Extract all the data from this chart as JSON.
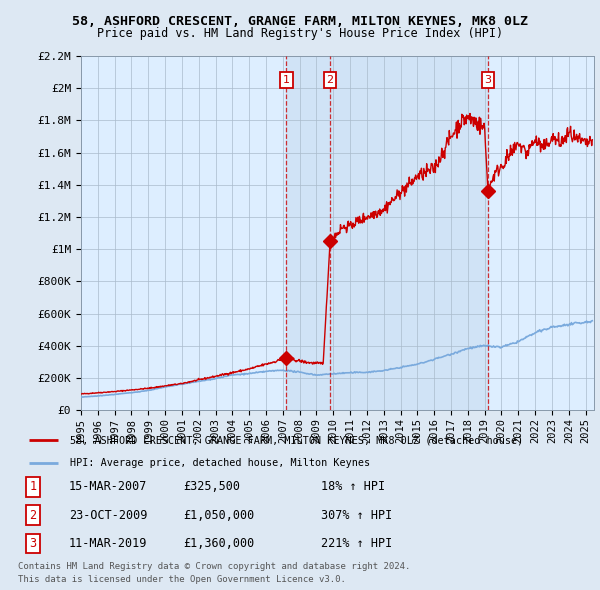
{
  "title1": "58, ASHFORD CRESCENT, GRANGE FARM, MILTON KEYNES, MK8 0LZ",
  "title2": "Price paid vs. HM Land Registry's House Price Index (HPI)",
  "legend_red": "58, ASHFORD CRESCENT, GRANGE FARM, MILTON KEYNES, MK8 0LZ (detached house)",
  "legend_blue": "HPI: Average price, detached house, Milton Keynes",
  "footnote1": "Contains HM Land Registry data © Crown copyright and database right 2024.",
  "footnote2": "This data is licensed under the Open Government Licence v3.0.",
  "sale_events": [
    {
      "num": 1,
      "date": "15-MAR-2007",
      "price": 325500,
      "hpi_pct": "18%"
    },
    {
      "num": 2,
      "date": "23-OCT-2009",
      "price": 1050000,
      "hpi_pct": "307%"
    },
    {
      "num": 3,
      "date": "11-MAR-2019",
      "price": 1360000,
      "hpi_pct": "221%"
    }
  ],
  "sale_years": [
    2007.21,
    2009.81,
    2019.19
  ],
  "sale_prices": [
    325500,
    1050000,
    1360000
  ],
  "hpi_color": "#7aaadd",
  "red_color": "#cc0000",
  "background_color": "#dde8f3",
  "plot_bg": "#ddeeff",
  "shade_color": "#c8ddf0",
  "ylim": [
    0,
    2200000
  ],
  "xlim_start": 1995.0,
  "xlim_end": 2025.5,
  "yticks": [
    0,
    200000,
    400000,
    600000,
    800000,
    1000000,
    1200000,
    1400000,
    1600000,
    1800000,
    2000000,
    2200000
  ],
  "ylabels": [
    "£0",
    "£200K",
    "£400K",
    "£600K",
    "£800K",
    "£1M",
    "£1.2M",
    "£1.4M",
    "£1.6M",
    "£1.8M",
    "£2M",
    "£2.2M"
  ]
}
